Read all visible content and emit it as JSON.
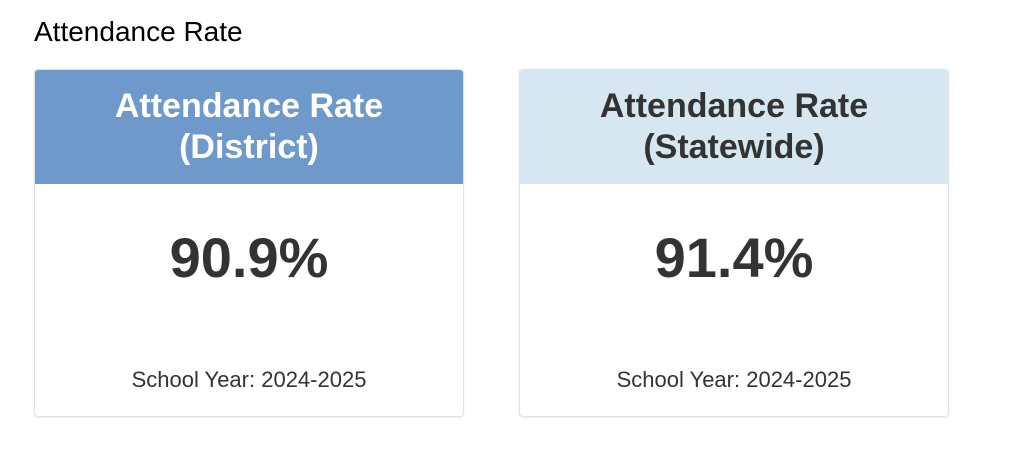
{
  "section": {
    "title": "Attendance Rate"
  },
  "cards": [
    {
      "header_line1": "Attendance Rate",
      "header_line2": "(District)",
      "value": "90.9%",
      "footer": "School Year: 2024-2025",
      "header_color": "#7099cb",
      "header_text_color": "#ffffff"
    },
    {
      "header_line1": "Attendance Rate",
      "header_line2": "(Statewide)",
      "value": "91.4%",
      "footer": "School Year: 2024-2025",
      "header_color": "#d6e7f2",
      "header_text_color": "#333333"
    }
  ]
}
